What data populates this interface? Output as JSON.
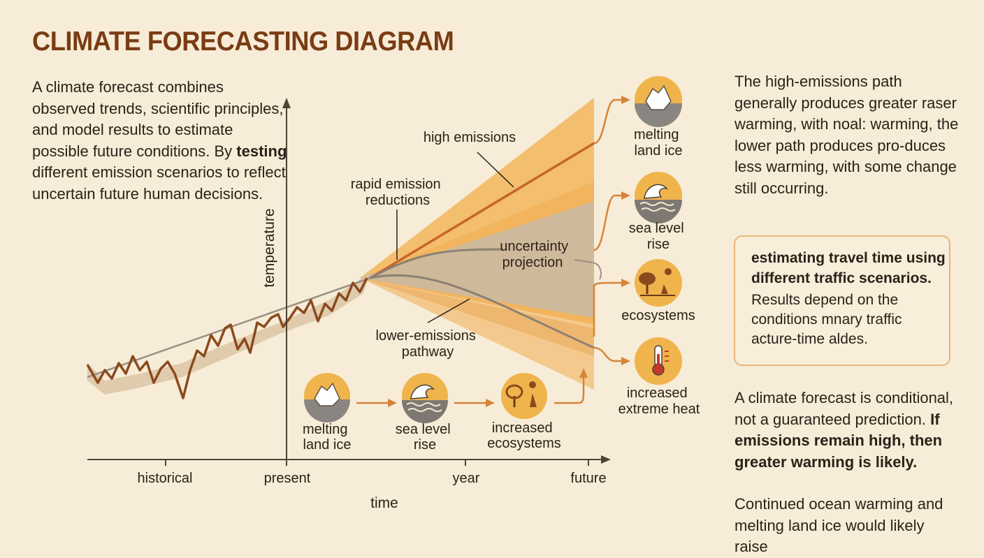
{
  "title": "CLIMATE FORECASTING DIAGRAM",
  "intro": {
    "before": "A climate forecast combines observed trends, scientific principles, and model results to estimate possible future conditions. By ",
    "bold": "testing",
    "after": " different emission scenarios to reflect uncertain future human decisions."
  },
  "right": {
    "top": "The high-emissions path generally produces greater raser warming, with noal: warming, the lower path produces pro-duces less warming, with some change still occurring.",
    "box_heading": "estimating travel time using different traffic scenarios.",
    "box_body": "Results depend on the conditions mnary traffic acture-time aldes.",
    "conditional_plain": "A climate forecast is conditional, not a guaranteed prediction. ",
    "conditional_bold": "If emissions remain high, then greater warming is likely.",
    "bottom": "Continued ocean warming and melting land ice would likely raise"
  },
  "diagram": {
    "y_axis": "temperature",
    "x_axis": "time",
    "x_ticks": [
      "historical",
      "present",
      "year",
      "future"
    ],
    "labels": {
      "high": "high emissions",
      "rapid": [
        "rapid emission",
        "reductions"
      ],
      "uncertainty": [
        "uncertainty",
        "projection"
      ],
      "lower": [
        "lower-emissions",
        "pathway"
      ]
    },
    "impacts": [
      {
        "icon": "iceberg-icon",
        "lines": [
          "melting",
          "land ice"
        ]
      },
      {
        "icon": "wave-icon",
        "lines": [
          "sea level",
          "rise"
        ]
      },
      {
        "icon": "trees-sun-icon",
        "lines": [
          "ecosystems"
        ]
      },
      {
        "icon": "thermometer-icon",
        "lines": [
          "increased",
          "extreme heat"
        ]
      }
    ],
    "chain": [
      {
        "icon": "iceberg-icon",
        "lines": [
          "melting",
          "land ice"
        ]
      },
      {
        "icon": "wave-icon",
        "lines": [
          "sea level",
          "rise"
        ]
      },
      {
        "icon": "trees-sun-icon",
        "lines": [
          "increased",
          "ecosystems"
        ]
      }
    ]
  },
  "colors": {
    "title": "#7a3c14",
    "observed": "#8a4a1e",
    "high_path": "#c8642a",
    "fan": "#f1b458",
    "uncertainty": "#c9b8a0",
    "icon_bg": "#f0b44c",
    "arrow": "#d6843a"
  }
}
